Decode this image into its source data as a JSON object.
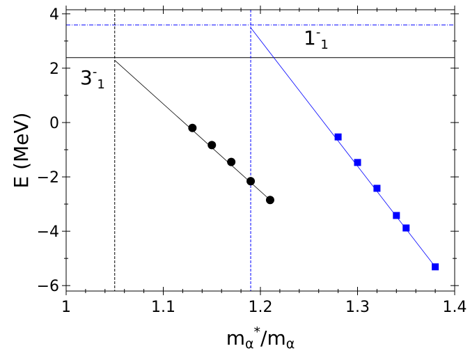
{
  "chart_data": {
    "type": "scatter",
    "xlabel": {
      "base": "m",
      "sub": "α",
      "sup": "*",
      "mid": "/m",
      "sub2": "α"
    },
    "ylabel": "E (MeV)",
    "xlim": [
      1,
      1.4
    ],
    "ylim": [
      -6.2,
      4.15
    ],
    "xticks": [
      1,
      1.1,
      1.2,
      1.3,
      1.4
    ],
    "yticks": [
      {
        "value": -6,
        "label": "−6"
      },
      {
        "value": -4,
        "label": "−4"
      },
      {
        "value": -2,
        "label": "−2"
      },
      0,
      2,
      4
    ],
    "xminorticks": [
      1.02,
      1.04,
      1.06,
      1.08,
      1.12,
      1.14,
      1.16,
      1.18,
      1.22,
      1.24,
      1.26,
      1.28,
      1.32,
      1.34,
      1.36,
      1.38
    ],
    "yminorticks": [
      -5,
      -3,
      -1,
      1,
      3
    ],
    "series": [
      {
        "color": "#000000",
        "marker": "circle",
        "x": [
          1.13,
          1.15,
          1.17,
          1.19,
          1.21
        ],
        "values": [
          -0.2,
          -0.83,
          -1.45,
          -2.16,
          -2.85
        ],
        "fit": {
          "x": [
            1.05,
            1.21
          ],
          "values": [
            2.29,
            -2.85
          ]
        }
      },
      {
        "color": "#0000ff",
        "marker": "square",
        "x": [
          1.28,
          1.3,
          1.32,
          1.34,
          1.35,
          1.38
        ],
        "values": [
          -0.53,
          -1.47,
          -2.42,
          -3.42,
          -3.88,
          -5.31
        ],
        "fit": {
          "x": [
            1.19,
            1.38
          ],
          "values": [
            3.49,
            -5.31
          ]
        }
      }
    ],
    "reference_lines": [
      {
        "orientation": "horizontal",
        "value": 2.39,
        "color": "#000000",
        "style": "solid"
      },
      {
        "orientation": "horizontal",
        "value": 3.59,
        "color": "#0000ff",
        "style": "dashdot"
      },
      {
        "orientation": "vertical",
        "value": 1.05,
        "color": "#000000",
        "style": "dashed"
      },
      {
        "orientation": "vertical",
        "value": 1.19,
        "color": "#0000ff",
        "style": "dashed"
      }
    ],
    "annotations": [
      {
        "base": "3",
        "sup": "-",
        "sub": "1"
      },
      {
        "base": "1",
        "sup": "-",
        "sub": "1"
      }
    ]
  }
}
